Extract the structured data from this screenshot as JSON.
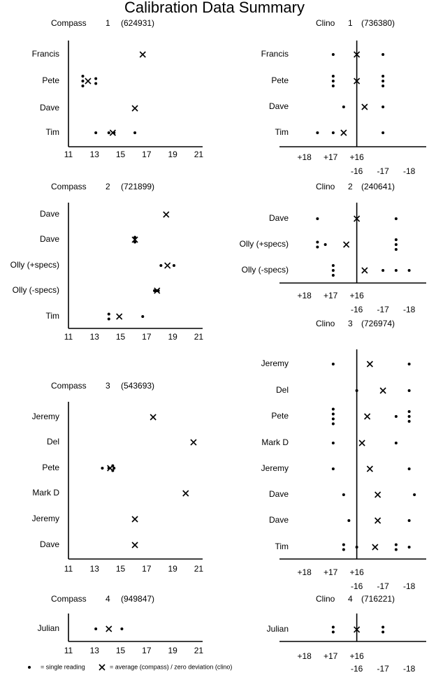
{
  "title": "Calibration Data Summary",
  "legend": {
    "single": "= single reading",
    "cross": "= average (compass) / zero deviation (clino)"
  },
  "chart_data": [
    {
      "type": "dot",
      "title": "Compass",
      "number": 1,
      "serial": "(624931)",
      "xscale": "linear",
      "xlim": [
        11,
        21.3
      ],
      "xticks": [
        11,
        13,
        15,
        17,
        19,
        21
      ],
      "rows": [
        {
          "name": "Francis",
          "readings": [],
          "cross": 16.7
        },
        {
          "name": "Pete",
          "readings": [
            12.1,
            12.1,
            12.1,
            13.1,
            13.1
          ],
          "cross": 12.5
        },
        {
          "name": "Dave",
          "readings": [],
          "cross": 16.1
        },
        {
          "name": "Tim",
          "readings": [
            13.1,
            14.1,
            14.5,
            16.1
          ],
          "cross": 14.4
        }
      ]
    },
    {
      "type": "dot",
      "title": "Clino",
      "number": 1,
      "serial": "(736380)",
      "xscale": "folded",
      "xlim": [
        18.95,
        -18.65
      ],
      "xticks": [
        {
          "value": 18,
          "label": "+18"
        },
        {
          "value": 17,
          "label": "+17"
        },
        {
          "value": 16,
          "label": "+16"
        },
        -16,
        -17,
        -18
      ],
      "rows": [
        {
          "name": "Francis",
          "readings": [
            16.9,
            -17.0
          ],
          "cross": 16
        },
        {
          "name": "Pete",
          "readings": [
            16.9,
            16.9,
            16.9,
            -17.0,
            -17.0,
            -17.0
          ],
          "cross": 16
        },
        {
          "name": "Dave",
          "readings": [
            16.5,
            -17.0
          ],
          "cross": -16.3
        },
        {
          "name": "Tim",
          "readings": [
            17.5,
            16.9,
            -17.0
          ],
          "cross": 16.5
        }
      ]
    },
    {
      "type": "dot",
      "title": "Compass",
      "number": 2,
      "serial": "(721899)",
      "xscale": "linear",
      "xlim": [
        11,
        21.3
      ],
      "xticks": [
        11,
        13,
        15,
        17,
        19,
        21
      ],
      "rows": [
        {
          "name": "Dave",
          "readings": [],
          "cross": 18.5
        },
        {
          "name": "Dave",
          "readings": [
            16.1,
            16.1
          ],
          "cross": 16.1
        },
        {
          "name": "Olly (+specs)",
          "readings": [
            18.1,
            19.1
          ],
          "cross": 18.6
        },
        {
          "name": "Olly (-specs)",
          "readings": [
            17.6,
            17.8,
            17.9
          ],
          "cross": 17.8
        },
        {
          "name": "Tim",
          "readings": [
            14.1,
            14.1,
            16.7
          ],
          "cross": 14.9
        }
      ]
    },
    {
      "type": "dot",
      "title": "Clino",
      "number": 2,
      "serial": "(240641)",
      "xscale": "folded",
      "xlim": [
        18.95,
        -18.65
      ],
      "xticks": [
        {
          "value": 18,
          "label": "+18"
        },
        {
          "value": 17,
          "label": "+17"
        },
        {
          "value": 16,
          "label": "+16"
        },
        -16,
        -17,
        -18
      ],
      "rows": [
        {
          "name": "Dave",
          "readings": [
            17.5,
            -17.5
          ],
          "cross": 16
        },
        {
          "name": "Olly (+specs)",
          "readings": [
            17.5,
            17.5,
            17.2,
            -17.5,
            -17.5,
            -17.5
          ],
          "cross": 16.4
        },
        {
          "name": "Olly (-specs)",
          "readings": [
            16.9,
            16.9,
            16.9,
            -17.0,
            -17.5,
            -18.0
          ],
          "cross": -16.3
        }
      ]
    },
    {
      "type": "dot",
      "title": "Clino",
      "number": 3,
      "serial": "(726974)",
      "xscale": "folded",
      "xlim": [
        18.95,
        -18.65
      ],
      "xticks": [
        {
          "value": 18,
          "label": "+18"
        },
        {
          "value": 17,
          "label": "+17"
        },
        {
          "value": 16,
          "label": "+16"
        },
        -16,
        -17,
        -18
      ],
      "rows": [
        {
          "name": "Jeremy",
          "readings": [
            16.9,
            -18.0
          ],
          "cross": -16.5
        },
        {
          "name": "Del",
          "readings": [
            16,
            -18.0
          ],
          "cross": -17.0
        },
        {
          "name": "Pete",
          "readings": [
            16.9,
            16.9,
            16.9,
            16.9,
            -17.5,
            -18.0,
            -18.0,
            -18.0
          ],
          "cross": -16.4
        },
        {
          "name": "Mark D",
          "readings": [
            16.9,
            -17.5
          ],
          "cross": -16.2
        },
        {
          "name": "Jeremy",
          "readings": [
            16.9,
            -18.0
          ],
          "cross": -16.5
        },
        {
          "name": "Dave",
          "readings": [
            16.5,
            -18.2
          ],
          "cross": -16.8
        },
        {
          "name": "Dave",
          "readings": [
            16.3,
            -18.0
          ],
          "cross": -16.8
        },
        {
          "name": "Tim",
          "readings": [
            16.5,
            16.5,
            16,
            -17.5,
            -17.5,
            -18.0
          ],
          "cross": -16.7
        }
      ]
    },
    {
      "type": "dot",
      "title": "Compass",
      "number": 3,
      "serial": "(543693)",
      "xscale": "linear",
      "xlim": [
        11,
        21.3
      ],
      "xticks": [
        11,
        13,
        15,
        17,
        19,
        21
      ],
      "rows": [
        {
          "name": "Jeremy",
          "readings": [],
          "cross": 17.5
        },
        {
          "name": "Del",
          "readings": [],
          "cross": 20.6
        },
        {
          "name": "Pete",
          "readings": [
            13.6,
            14.1,
            14.4,
            14.4,
            14.5
          ],
          "cross": 14.2
        },
        {
          "name": "Mark D",
          "readings": [],
          "cross": 20.0
        },
        {
          "name": "Jeremy",
          "readings": [],
          "cross": 16.1
        },
        {
          "name": "Dave",
          "readings": [],
          "cross": 16.1
        }
      ]
    },
    {
      "type": "dot",
      "title": "Compass",
      "number": 4,
      "serial": "(949847)",
      "xscale": "linear",
      "xlim": [
        11,
        21.3
      ],
      "xticks": [
        11,
        13,
        15,
        17,
        19,
        21
      ],
      "rows": [
        {
          "name": "Julian",
          "readings": [
            13.1,
            15.1
          ],
          "cross": 14.1
        }
      ]
    },
    {
      "type": "dot",
      "title": "Clino",
      "number": 4,
      "serial": "(716221)",
      "xscale": "folded",
      "xlim": [
        18.95,
        -18.65
      ],
      "xticks": [
        {
          "value": 18,
          "label": "+18"
        },
        {
          "value": 17,
          "label": "+17"
        },
        {
          "value": 16,
          "label": "+16"
        },
        -16,
        -17,
        -18
      ],
      "rows": [
        {
          "name": "Julian",
          "readings": [
            16.9,
            16.9,
            -17.0,
            -17.0
          ],
          "cross": 16
        }
      ]
    }
  ]
}
